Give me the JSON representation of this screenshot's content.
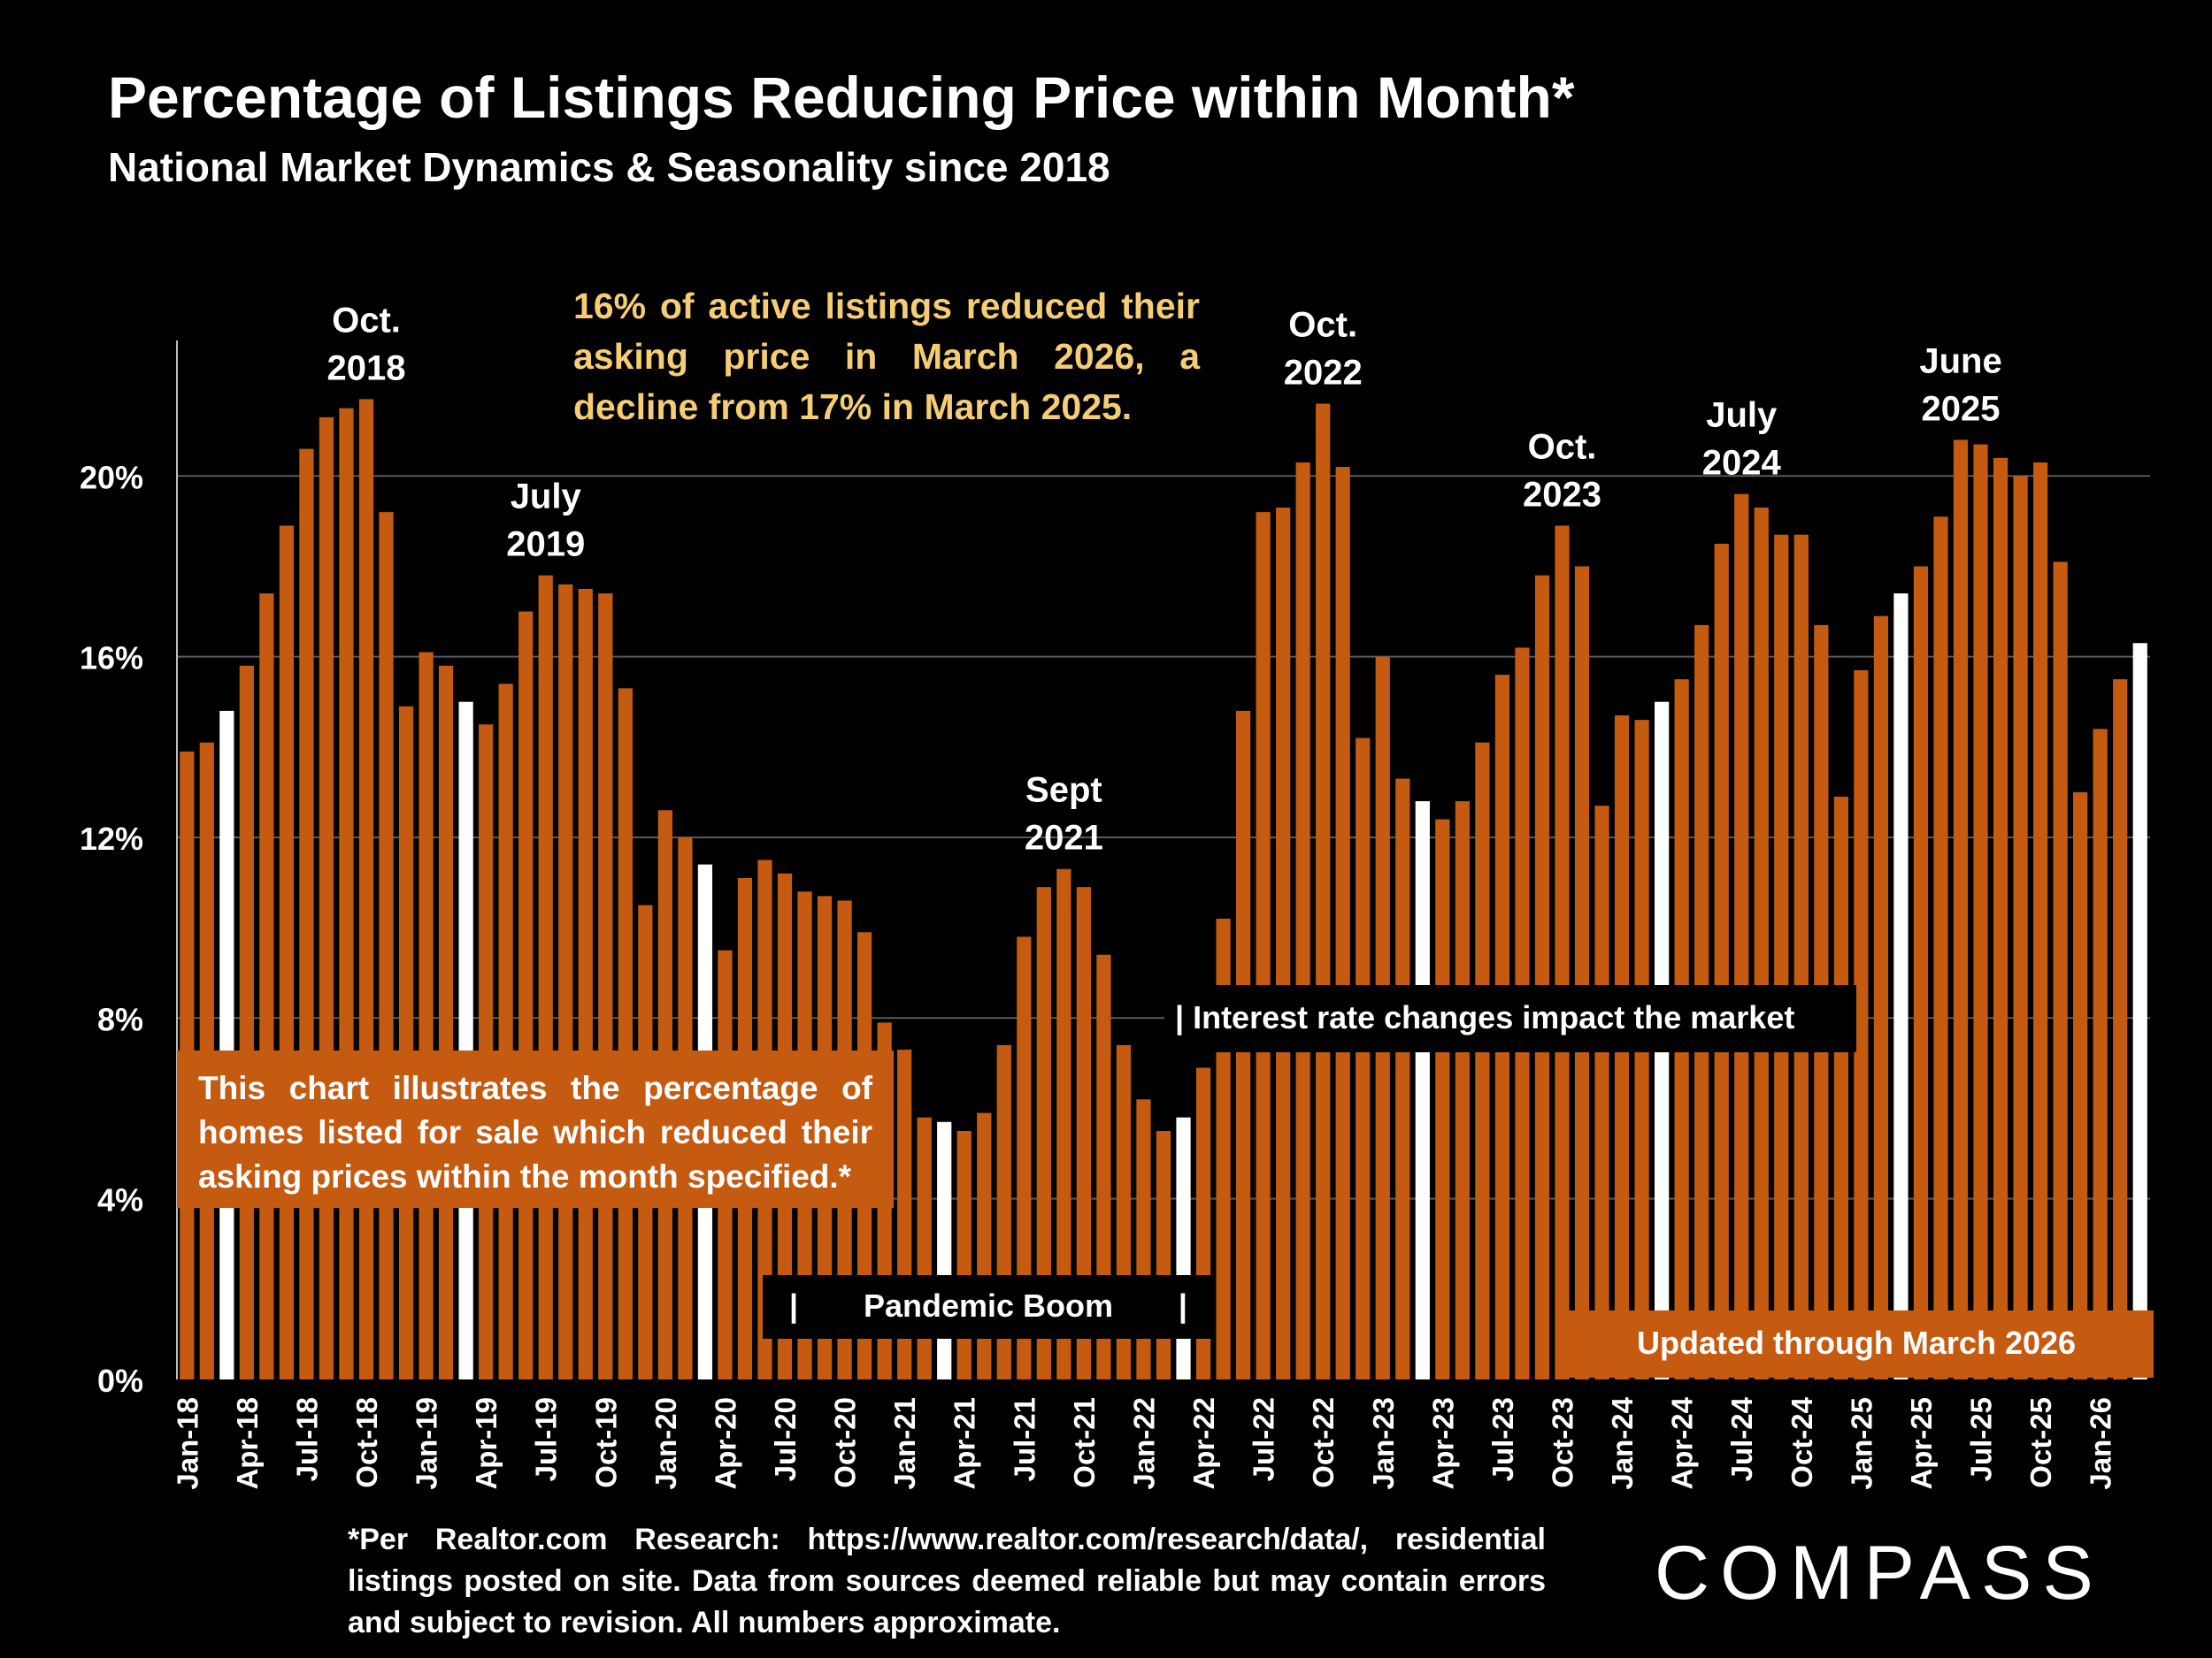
{
  "title": "Percentage of Listings Reducing Price within Month*",
  "subtitle": "National Market Dynamics & Seasonality since 2018",
  "callout": "16% of active listings reduced their asking price in March 2026, a decline from 17% in March 2025.",
  "explain_box": "This chart illustrates the percentage of homes listed for sale which reduced their asking prices within the month specified.*",
  "pandemic_bar": "|",
  "pandemic_label": "Pandemic Boom",
  "rates_label": "| Interest rate changes impact the market",
  "updated_label": "Updated through March 2026",
  "footnote": "*Per Realtor.com Research: https://www.realtor.com/research/data/, residential listings posted on site. Data from sources deemed reliable but may contain errors and subject to revision. All numbers approximate.",
  "logo": "COMPASS",
  "colors": {
    "bar": "#c55a11",
    "highlight": "#ffffff",
    "grid": "#595959",
    "callout_text": "#f5cd74"
  },
  "chart_data": {
    "type": "bar",
    "y_unit": "%",
    "ylim": [
      0,
      23
    ],
    "yticks": [
      "0%",
      "4%",
      "8%",
      "12%",
      "16%",
      "20%"
    ],
    "ytick_values": [
      0,
      4,
      8,
      12,
      16,
      20
    ],
    "grid": true,
    "categories": [
      "Jan-18",
      "Feb-18",
      "Mar-18",
      "Apr-18",
      "May-18",
      "Jun-18",
      "Jul-18",
      "Aug-18",
      "Sep-18",
      "Oct-18",
      "Nov-18",
      "Dec-18",
      "Jan-19",
      "Feb-19",
      "Mar-19",
      "Apr-19",
      "May-19",
      "Jun-19",
      "Jul-19",
      "Aug-19",
      "Sep-19",
      "Oct-19",
      "Nov-19",
      "Dec-19",
      "Jan-20",
      "Feb-20",
      "Mar-20",
      "Apr-20",
      "May-20",
      "Jun-20",
      "Jul-20",
      "Aug-20",
      "Sep-20",
      "Oct-20",
      "Nov-20",
      "Dec-20",
      "Jan-21",
      "Feb-21",
      "Mar-21",
      "Apr-21",
      "May-21",
      "Jun-21",
      "Jul-21",
      "Aug-21",
      "Sep-21",
      "Oct-21",
      "Nov-21",
      "Dec-21",
      "Jan-22",
      "Feb-22",
      "Mar-22",
      "Apr-22",
      "May-22",
      "Jun-22",
      "Jul-22",
      "Aug-22",
      "Sep-22",
      "Oct-22",
      "Nov-22",
      "Dec-22",
      "Jan-23",
      "Feb-23",
      "Mar-23",
      "Apr-23",
      "May-23",
      "Jun-23",
      "Jul-23",
      "Aug-23",
      "Sep-23",
      "Oct-23",
      "Nov-23",
      "Dec-23",
      "Jan-24",
      "Feb-24",
      "Mar-24",
      "Apr-24",
      "May-24",
      "Jun-24",
      "Jul-24",
      "Aug-24",
      "Sep-24",
      "Oct-24",
      "Nov-24",
      "Dec-24",
      "Jan-25",
      "Feb-25",
      "Mar-25",
      "Apr-25",
      "May-25",
      "Jun-25",
      "Jul-25",
      "Aug-25",
      "Sep-25",
      "Oct-25",
      "Nov-25",
      "Dec-25",
      "Jan-26",
      "Feb-26",
      "Mar-26"
    ],
    "tick_labels": [
      "Jan-18",
      "Apr-18",
      "Jul-18",
      "Oct-18",
      "Jan-19",
      "Apr-19",
      "Jul-19",
      "Oct-19",
      "Jan-20",
      "Apr-20",
      "Jul-20",
      "Oct-20",
      "Jan-21",
      "Apr-21",
      "Jul-21",
      "Oct-21",
      "Jan-22",
      "Apr-22",
      "Jul-22",
      "Oct-22",
      "Jan-23",
      "Apr-23",
      "Jul-23",
      "Oct-23",
      "Jan-24",
      "Apr-24",
      "Jul-24",
      "Oct-24",
      "Jan-25",
      "Apr-25",
      "Jul-25",
      "Oct-25",
      "Jan-26"
    ],
    "values": [
      13.9,
      14.1,
      14.8,
      15.8,
      17.4,
      18.9,
      20.6,
      21.3,
      21.5,
      21.7,
      19.2,
      14.9,
      16.1,
      15.8,
      15.0,
      14.5,
      15.4,
      17.0,
      17.8,
      17.6,
      17.5,
      17.4,
      15.3,
      10.5,
      12.6,
      12.0,
      11.4,
      9.5,
      11.1,
      11.5,
      11.2,
      10.8,
      10.7,
      10.6,
      9.9,
      7.9,
      7.3,
      5.8,
      5.7,
      5.5,
      5.9,
      7.4,
      9.8,
      10.9,
      11.3,
      10.9,
      9.4,
      7.4,
      6.2,
      5.5,
      5.8,
      6.9,
      10.2,
      14.8,
      19.2,
      19.3,
      20.3,
      21.6,
      20.2,
      14.2,
      16.0,
      13.3,
      12.8,
      12.4,
      12.8,
      14.1,
      15.6,
      16.2,
      17.8,
      18.9,
      18.0,
      12.7,
      14.7,
      14.6,
      15.0,
      15.5,
      16.7,
      18.5,
      19.6,
      19.3,
      18.7,
      18.7,
      16.7,
      12.9,
      15.7,
      16.9,
      17.4,
      18.0,
      19.1,
      20.8,
      20.7,
      20.4,
      20.0,
      20.3,
      18.1,
      13.0,
      14.4,
      15.5,
      16.3
    ],
    "highlight_months": [
      "Mar-18",
      "Mar-19",
      "Mar-20",
      "Mar-21",
      "Mar-22",
      "Mar-23",
      "Mar-24",
      "Mar-25",
      "Mar-26"
    ],
    "annotations": [
      {
        "month": "Oct-18",
        "lines": [
          "Oct.",
          "2018"
        ]
      },
      {
        "month": "Jul-19",
        "lines": [
          "July",
          "2019"
        ]
      },
      {
        "month": "Sep-21",
        "lines": [
          "Sept",
          "2021"
        ]
      },
      {
        "month": "Oct-22",
        "lines": [
          "Oct.",
          "2022"
        ]
      },
      {
        "month": "Oct-23",
        "lines": [
          "Oct.",
          "2023"
        ]
      },
      {
        "month": "Jul-24",
        "lines": [
          "July",
          "2024"
        ]
      },
      {
        "month": "Jun-25",
        "lines": [
          "June",
          "2025"
        ]
      }
    ]
  }
}
